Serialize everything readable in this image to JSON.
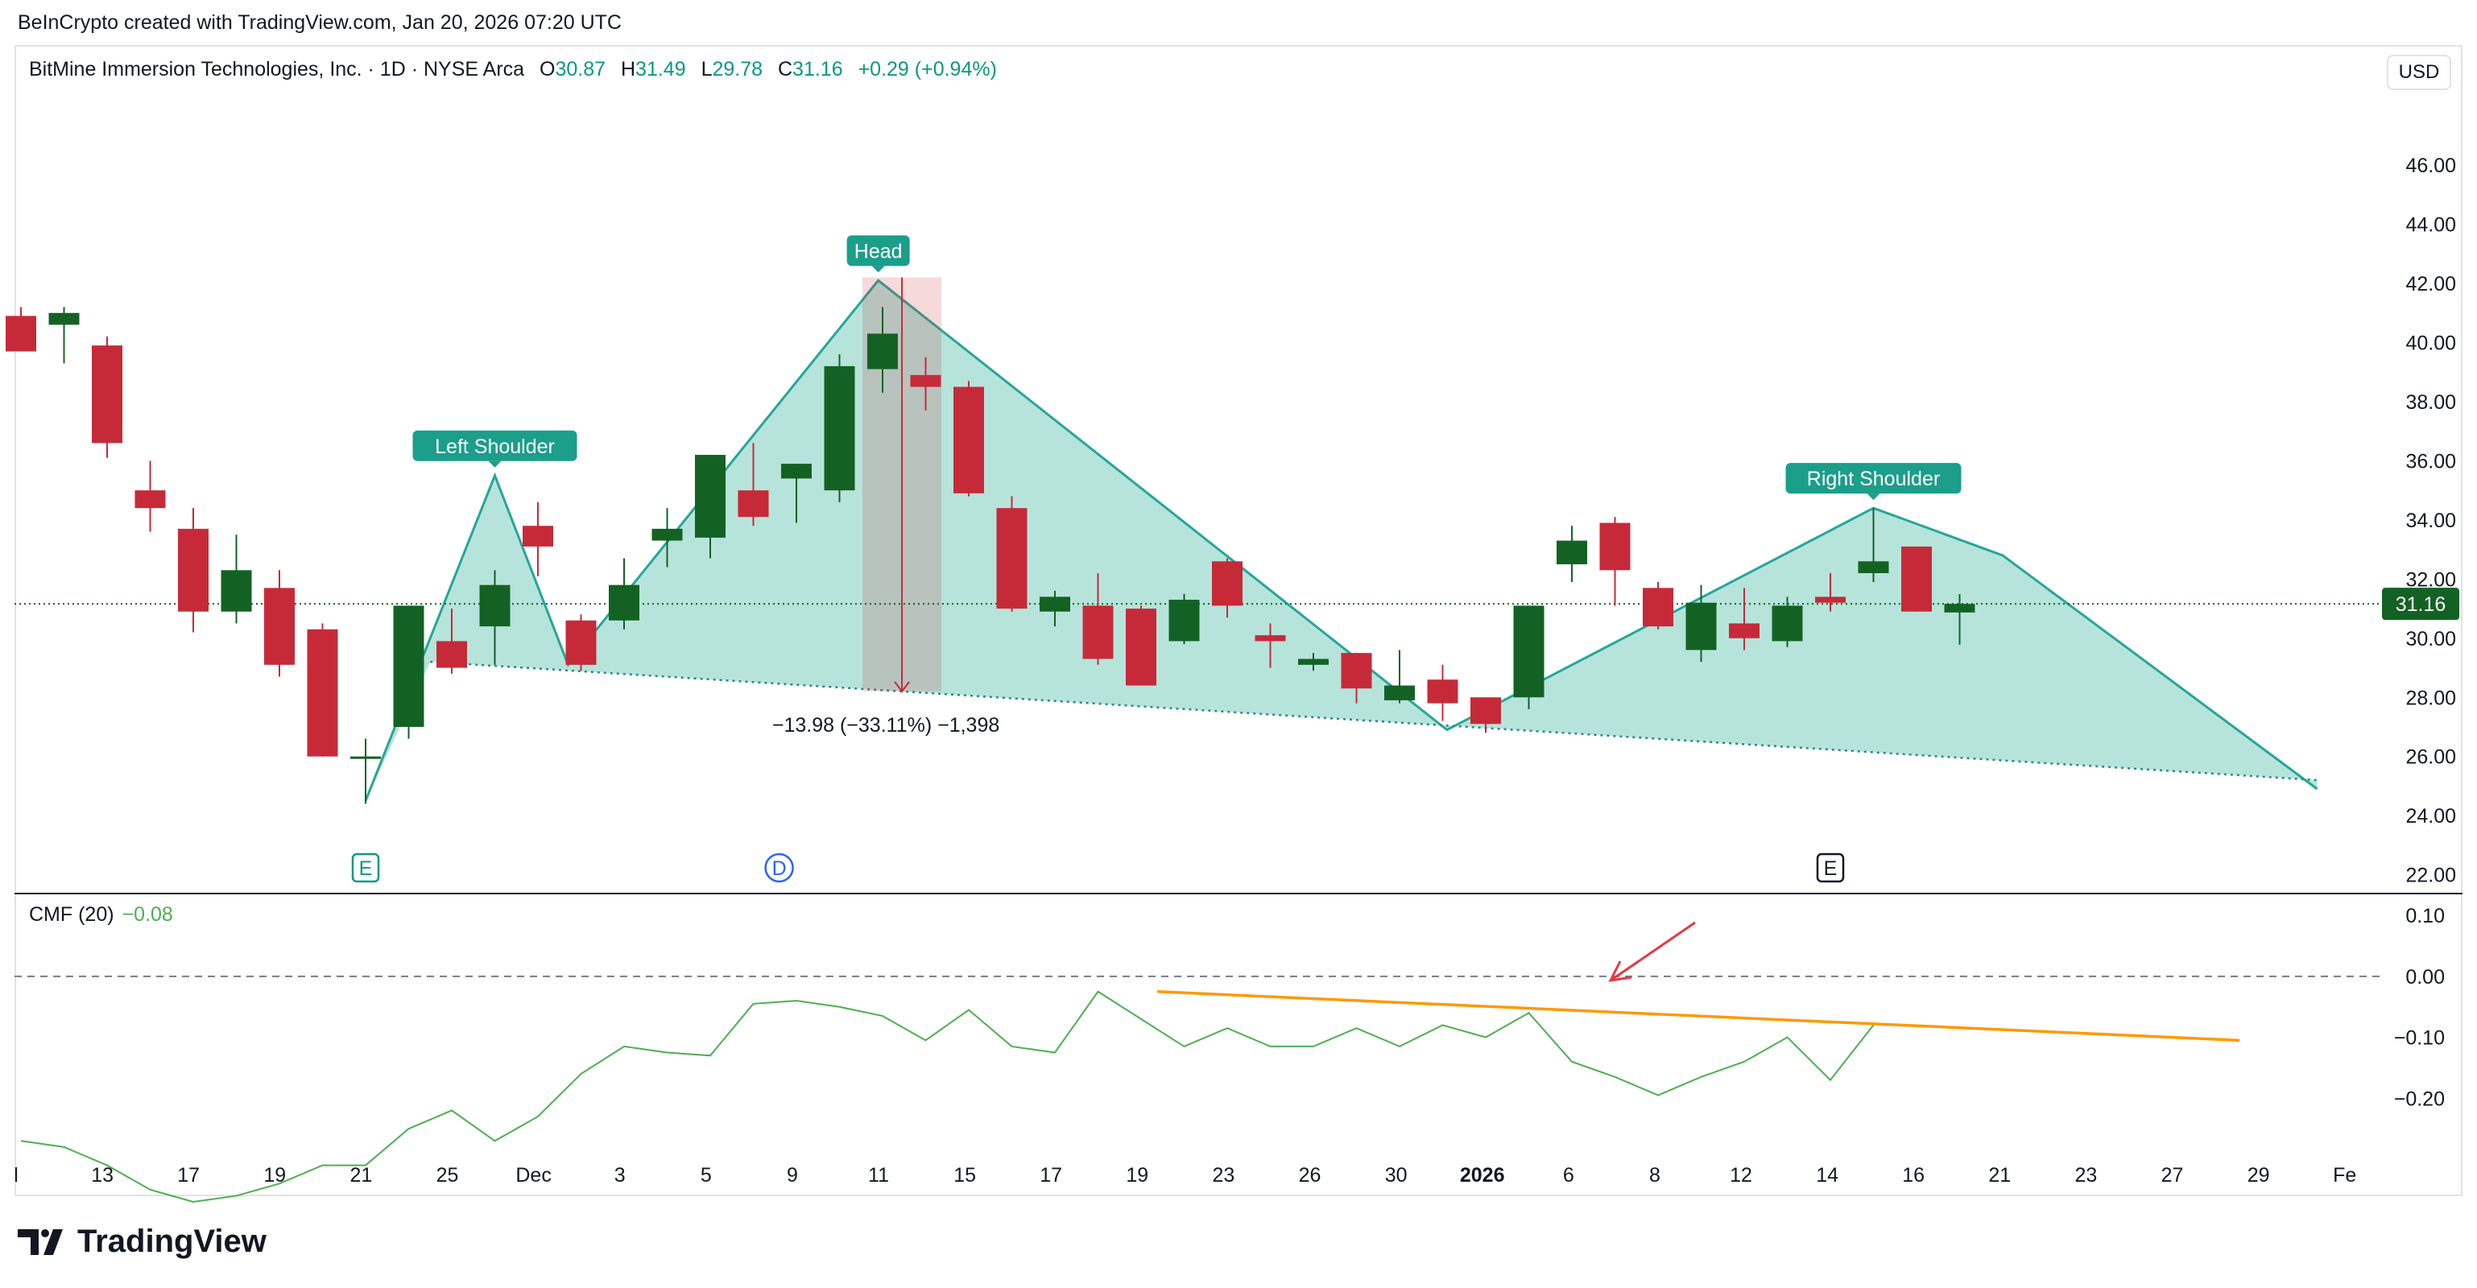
{
  "attribution": "BeInCrypto created with TradingView.com, Jan 20, 2026 07:20 UTC",
  "header": {
    "symbol": "BitMine Immersion Technologies, Inc. · 1D · NYSE Arca",
    "open_label": "O",
    "open": "30.87",
    "high_label": "H",
    "high": "31.49",
    "low_label": "L",
    "low": "29.78",
    "close_label": "C",
    "close": "31.16",
    "change": "+0.29 (+0.94%)"
  },
  "currency": "USD",
  "last_price_label": "31.16",
  "logo_text": "TradingView",
  "colors": {
    "up": "#136224",
    "down": "#c62a39",
    "pattern_fill": "#b2e3d9",
    "pattern_line": "#26a69a",
    "trend": "#ff9800",
    "cmf_line": "#4caf50",
    "arrow": "#e53945"
  },
  "chart_data": [
    {
      "type": "candlestick",
      "title": "BitMine Immersion Technologies, Inc. · 1D · NYSE Arca",
      "ylim": [
        21.5,
        47.5
      ],
      "y_ticks": [
        "46.00",
        "44.00",
        "42.00",
        "40.00",
        "38.00",
        "36.00",
        "34.00",
        "32.00",
        "30.00",
        "28.00",
        "26.00",
        "24.00",
        "22.00"
      ],
      "x_ticks": [
        "l",
        "13",
        "17",
        "19",
        "21",
        "25",
        "Dec",
        "3",
        "5",
        "9",
        "11",
        "15",
        "17",
        "19",
        "23",
        "26",
        "30",
        "2026",
        "6",
        "8",
        "12",
        "14",
        "16",
        "21",
        "23",
        "27",
        "29",
        "Fe"
      ],
      "candles": [
        {
          "o": 40.9,
          "h": 41.2,
          "l": 39.8,
          "c": 39.7
        },
        {
          "o": 40.6,
          "h": 41.2,
          "l": 39.3,
          "c": 41.0
        },
        {
          "o": 39.9,
          "h": 40.2,
          "l": 36.1,
          "c": 36.6
        },
        {
          "o": 35.0,
          "h": 36.0,
          "l": 33.6,
          "c": 34.4
        },
        {
          "o": 33.7,
          "h": 34.4,
          "l": 30.2,
          "c": 30.9
        },
        {
          "o": 30.9,
          "h": 33.5,
          "l": 30.5,
          "c": 32.3
        },
        {
          "o": 31.7,
          "h": 32.3,
          "l": 28.7,
          "c": 29.1
        },
        {
          "o": 30.3,
          "h": 30.5,
          "l": 26.0,
          "c": 26.0
        },
        {
          "o": 26.0,
          "h": 26.6,
          "l": 24.4,
          "c": 26.0
        },
        {
          "o": 27.0,
          "h": 31.1,
          "l": 26.6,
          "c": 31.1
        },
        {
          "o": 29.9,
          "h": 31.0,
          "l": 28.8,
          "c": 29.0
        },
        {
          "o": 30.4,
          "h": 32.3,
          "l": 29.1,
          "c": 31.8
        },
        {
          "o": 33.8,
          "h": 34.6,
          "l": 32.1,
          "c": 33.1
        },
        {
          "o": 30.6,
          "h": 30.8,
          "l": 28.9,
          "c": 29.1
        },
        {
          "o": 30.6,
          "h": 32.7,
          "l": 30.3,
          "c": 31.8
        },
        {
          "o": 33.3,
          "h": 34.4,
          "l": 32.4,
          "c": 33.7
        },
        {
          "o": 33.4,
          "h": 36.2,
          "l": 32.7,
          "c": 36.2
        },
        {
          "o": 35.0,
          "h": 36.6,
          "l": 33.8,
          "c": 34.1
        },
        {
          "o": 35.4,
          "h": 35.9,
          "l": 33.9,
          "c": 35.9
        },
        {
          "o": 35.0,
          "h": 39.6,
          "l": 34.6,
          "c": 39.2
        },
        {
          "o": 39.1,
          "h": 41.2,
          "l": 38.3,
          "c": 40.3
        },
        {
          "o": 38.9,
          "h": 39.5,
          "l": 37.7,
          "c": 38.5
        },
        {
          "o": 38.5,
          "h": 38.7,
          "l": 34.8,
          "c": 34.9
        },
        {
          "o": 34.4,
          "h": 34.8,
          "l": 30.9,
          "c": 31.0
        },
        {
          "o": 30.9,
          "h": 31.6,
          "l": 30.4,
          "c": 31.4
        },
        {
          "o": 31.1,
          "h": 32.2,
          "l": 29.1,
          "c": 29.3
        },
        {
          "o": 31.0,
          "h": 31.1,
          "l": 28.4,
          "c": 28.4
        },
        {
          "o": 29.9,
          "h": 31.5,
          "l": 29.8,
          "c": 31.3
        },
        {
          "o": 32.6,
          "h": 32.7,
          "l": 30.7,
          "c": 31.1
        },
        {
          "o": 30.1,
          "h": 30.5,
          "l": 29.0,
          "c": 29.9
        },
        {
          "o": 29.1,
          "h": 29.5,
          "l": 28.9,
          "c": 29.3
        },
        {
          "o": 29.5,
          "h": 29.5,
          "l": 27.8,
          "c": 28.3
        },
        {
          "o": 27.9,
          "h": 29.6,
          "l": 27.8,
          "c": 28.4
        },
        {
          "o": 28.6,
          "h": 29.1,
          "l": 27.2,
          "c": 27.8
        },
        {
          "o": 28.0,
          "h": 28.0,
          "l": 26.8,
          "c": 27.1
        },
        {
          "o": 28.0,
          "h": 31.1,
          "l": 27.6,
          "c": 31.1
        },
        {
          "o": 32.5,
          "h": 33.8,
          "l": 31.9,
          "c": 33.3
        },
        {
          "o": 33.9,
          "h": 34.1,
          "l": 31.1,
          "c": 32.3
        },
        {
          "o": 31.7,
          "h": 31.9,
          "l": 30.3,
          "c": 30.4
        },
        {
          "o": 29.6,
          "h": 31.8,
          "l": 29.2,
          "c": 31.2
        },
        {
          "o": 30.5,
          "h": 31.7,
          "l": 29.6,
          "c": 30.0
        },
        {
          "o": 29.9,
          "h": 31.4,
          "l": 29.7,
          "c": 31.1
        },
        {
          "o": 31.4,
          "h": 32.2,
          "l": 30.9,
          "c": 31.2
        },
        {
          "o": 32.2,
          "h": 34.4,
          "l": 31.9,
          "c": 32.6
        },
        {
          "o": 33.1,
          "h": 33.1,
          "l": 30.9,
          "c": 30.9
        },
        {
          "o": 30.87,
          "h": 31.49,
          "l": 29.78,
          "c": 31.16
        }
      ],
      "pattern": {
        "points": [
          [
            8,
            24.5
          ],
          [
            11,
            35.5
          ],
          [
            12.7,
            29.1
          ],
          [
            19.9,
            42.1
          ],
          [
            33.1,
            26.9
          ],
          [
            43.0,
            34.4
          ],
          [
            46.0,
            32.8
          ],
          [
            53.3,
            24.9
          ]
        ],
        "neckline": [
          [
            9.5,
            29.2
          ],
          [
            53.3,
            25.2
          ]
        ],
        "labels": [
          {
            "text": "Left Shoulder",
            "i": 11,
            "y": 35.5
          },
          {
            "text": "Head",
            "i": 19.9,
            "y": 42.1
          },
          {
            "text": "Right Shoulder",
            "i": 43,
            "y": 34.4
          }
        ]
      },
      "measure": {
        "from": 42.2,
        "to": 28.2,
        "i0": 20,
        "i1": 20.9,
        "label": "−13.98 (−33.11%) −1,398"
      },
      "last_price": 31.16,
      "events": [
        {
          "label": "E",
          "i": 8
        },
        {
          "label": "D",
          "i": 17.6
        },
        {
          "label": "E",
          "i": 42
        }
      ]
    },
    {
      "type": "line",
      "title": "CMF (20)",
      "value_label": "−0.08",
      "ylim": [
        -0.3,
        0.12
      ],
      "y_ticks": [
        "0.10",
        "0.00",
        "−0.10",
        "−0.20"
      ],
      "values": [
        -0.27,
        -0.28,
        -0.31,
        -0.35,
        -0.37,
        -0.36,
        -0.34,
        -0.31,
        -0.31,
        -0.25,
        -0.22,
        -0.27,
        -0.23,
        -0.16,
        -0.115,
        -0.125,
        -0.13,
        -0.045,
        -0.04,
        -0.05,
        -0.065,
        -0.105,
        -0.055,
        -0.115,
        -0.125,
        -0.025,
        -0.07,
        -0.115,
        -0.085,
        -0.115,
        -0.115,
        -0.085,
        -0.115,
        -0.08,
        -0.1,
        -0.06,
        -0.14,
        -0.165,
        -0.195,
        -0.165,
        -0.14,
        -0.1,
        -0.17,
        -0.08
      ],
      "trendline": [
        [
          26,
          -0.025
        ],
        [
          51.5,
          -0.105
        ]
      ],
      "zero_line": 0.0
    }
  ]
}
